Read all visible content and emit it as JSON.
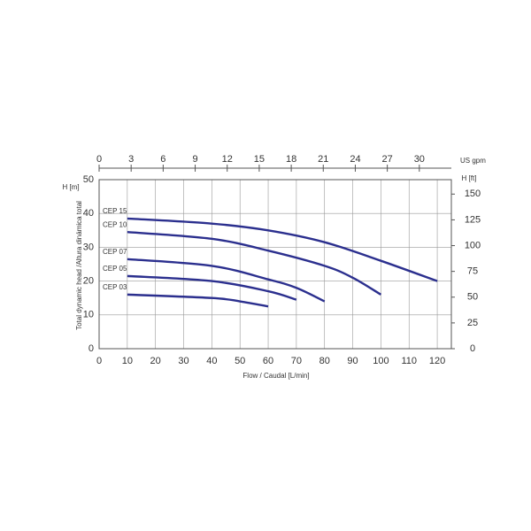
{
  "chart_data": {
    "type": "line",
    "xlabel": "Flow / Caudal [L/min]",
    "ylabel": "Total dynamic head /Altura dinámica total",
    "y_unit_label": "H [m]",
    "y2_unit_label": "H [ft]",
    "x2_unit_label": "US gpm",
    "xlim": [
      0,
      125
    ],
    "xticks": [
      0,
      10,
      20,
      30,
      40,
      50,
      60,
      70,
      80,
      90,
      100,
      110,
      120
    ],
    "ylim": [
      0,
      50
    ],
    "yticks": [
      0,
      10,
      20,
      30,
      40,
      50
    ],
    "y2lim": [
      0,
      164
    ],
    "y2ticks": [
      0,
      25,
      50,
      75,
      100,
      125,
      150
    ],
    "x2lim": [
      0,
      33
    ],
    "x2ticks": [
      0,
      3,
      6,
      9,
      12,
      15,
      18,
      21,
      24,
      27,
      30
    ],
    "grid": true,
    "series": [
      {
        "name": "CEP 15",
        "color": "#2b2f8e",
        "x": [
          10,
          40,
          60,
          80,
          100,
          120
        ],
        "values": [
          38.5,
          37,
          35,
          31.5,
          26,
          20
        ]
      },
      {
        "name": "CEP 10",
        "color": "#2b2f8e",
        "x": [
          10,
          40,
          60,
          80,
          90,
          100
        ],
        "values": [
          34.5,
          32.5,
          29,
          24.5,
          21,
          16
        ]
      },
      {
        "name": "CEP 07",
        "color": "#2b2f8e",
        "x": [
          10,
          40,
          60,
          70,
          80
        ],
        "values": [
          26.5,
          24.5,
          20.5,
          18,
          14
        ]
      },
      {
        "name": "CEP 05",
        "color": "#2b2f8e",
        "x": [
          10,
          40,
          60,
          70
        ],
        "values": [
          21.5,
          20,
          17,
          14.5
        ]
      },
      {
        "name": "CEP 03",
        "color": "#2b2f8e",
        "x": [
          10,
          40,
          50,
          60
        ],
        "values": [
          16,
          15,
          14,
          12.5
        ]
      }
    ]
  }
}
